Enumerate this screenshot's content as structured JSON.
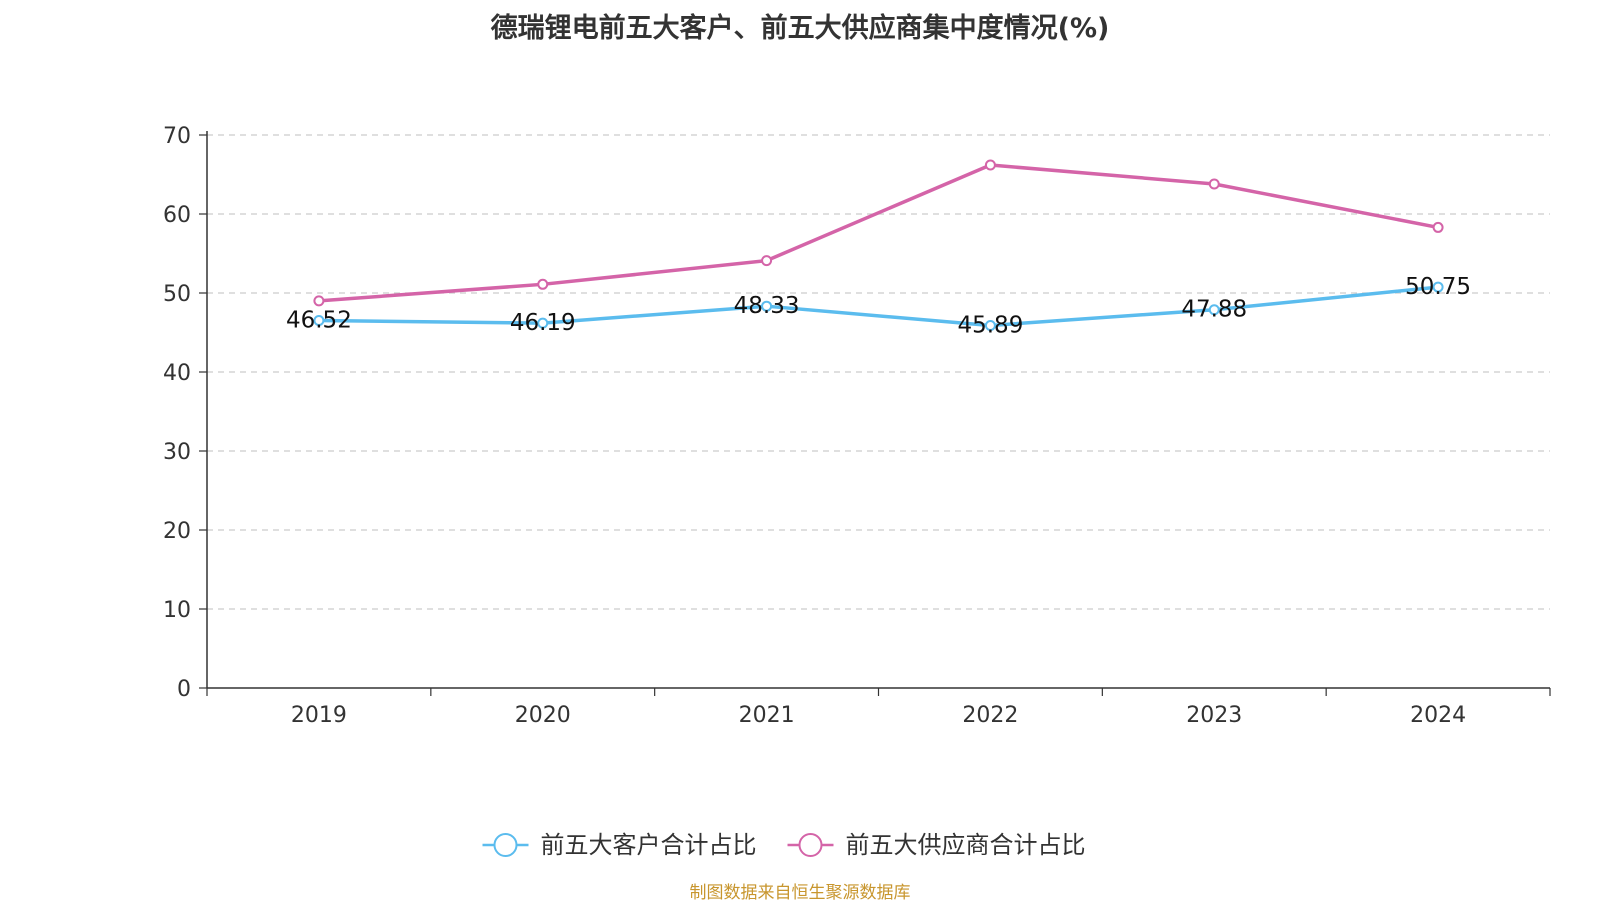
{
  "chart_data": {
    "type": "line",
    "title": "德瑞锂电前五大客户、前五大供应商集中度情况(%)",
    "categories": [
      "2019",
      "2020",
      "2021",
      "2022",
      "2023",
      "2024"
    ],
    "ylim": [
      0,
      70
    ],
    "yticks": [
      0,
      10,
      20,
      30,
      40,
      50,
      60,
      70
    ],
    "grid": true,
    "legend_position": "bottom-center",
    "series": [
      {
        "name": "前五大客户合计占比",
        "color": "#5bbcee",
        "values": [
          46.52,
          46.19,
          48.33,
          45.89,
          47.88,
          50.75
        ],
        "labels": [
          "46.52",
          "46.19",
          "48.33",
          "45.89",
          "47.88",
          "50.75"
        ],
        "show_labels": true
      },
      {
        "name": "前五大供应商合计占比",
        "color": "#d464a8",
        "values": [
          49.0,
          51.1,
          54.1,
          66.2,
          63.8,
          58.3
        ],
        "show_labels": false
      }
    ]
  },
  "source_note": "制图数据来自恒生聚源数据库"
}
